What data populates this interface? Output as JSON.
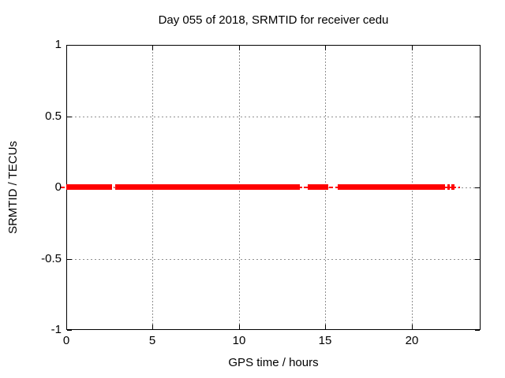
{
  "chart_data": {
    "type": "scatter",
    "title": "Day 055 of 2018, SRMTID for receiver cedu",
    "xlabel": "GPS time / hours",
    "ylabel": "SRMTID / TECUs",
    "xlim": [
      0,
      24
    ],
    "ylim": [
      -1,
      1
    ],
    "x_ticks": [
      {
        "value": 0,
        "label": "0"
      },
      {
        "value": 5,
        "label": "5"
      },
      {
        "value": 10,
        "label": "10"
      },
      {
        "value": 15,
        "label": "15"
      },
      {
        "value": 20,
        "label": "20"
      }
    ],
    "y_ticks": [
      {
        "value": 1,
        "label": "1"
      },
      {
        "value": 0.5,
        "label": "0.5"
      },
      {
        "value": 0,
        "label": "0"
      },
      {
        "value": -0.5,
        "label": "-0.5"
      },
      {
        "value": -1,
        "label": "-1"
      }
    ],
    "grid": true,
    "legend_position": "none",
    "colors": {
      "series": "#ff0000",
      "grid": "#909090",
      "border": "#000000",
      "text": "#000000",
      "background": "#ffffff"
    },
    "series": [
      {
        "name": "SRMTID",
        "y_value": 0,
        "render": "dense point band at y = 0 TECUs with data gaps",
        "segments_hours": [
          {
            "start": -0.37,
            "end": -0.09,
            "density": "sparse"
          },
          {
            "start": 0.0,
            "end": 2.66,
            "density": "dense"
          },
          {
            "start": 2.72,
            "end": 2.78,
            "density": "sparse"
          },
          {
            "start": 2.82,
            "end": 13.5,
            "density": "dense"
          },
          {
            "start": 13.5,
            "end": 13.66,
            "density": "sparse"
          },
          {
            "start": 13.76,
            "end": 14.01,
            "density": "sparse"
          },
          {
            "start": 14.01,
            "end": 15.2,
            "density": "dense"
          },
          {
            "start": 15.2,
            "end": 15.42,
            "density": "sparse"
          },
          {
            "start": 15.6,
            "end": 15.74,
            "density": "sparse"
          },
          {
            "start": 15.74,
            "end": 21.94,
            "density": "dense"
          },
          {
            "start": 21.94,
            "end": 22.06,
            "density": "sparse"
          },
          {
            "start": 22.06,
            "end": 22.2,
            "density": "dense"
          },
          {
            "start": 22.2,
            "end": 22.29,
            "density": "sparse"
          },
          {
            "start": 22.29,
            "end": 22.47,
            "density": "dense"
          },
          {
            "start": 22.47,
            "end": 22.56,
            "density": "sparse"
          },
          {
            "start": 22.7,
            "end": 22.79,
            "density": "sparse"
          }
        ]
      }
    ]
  }
}
